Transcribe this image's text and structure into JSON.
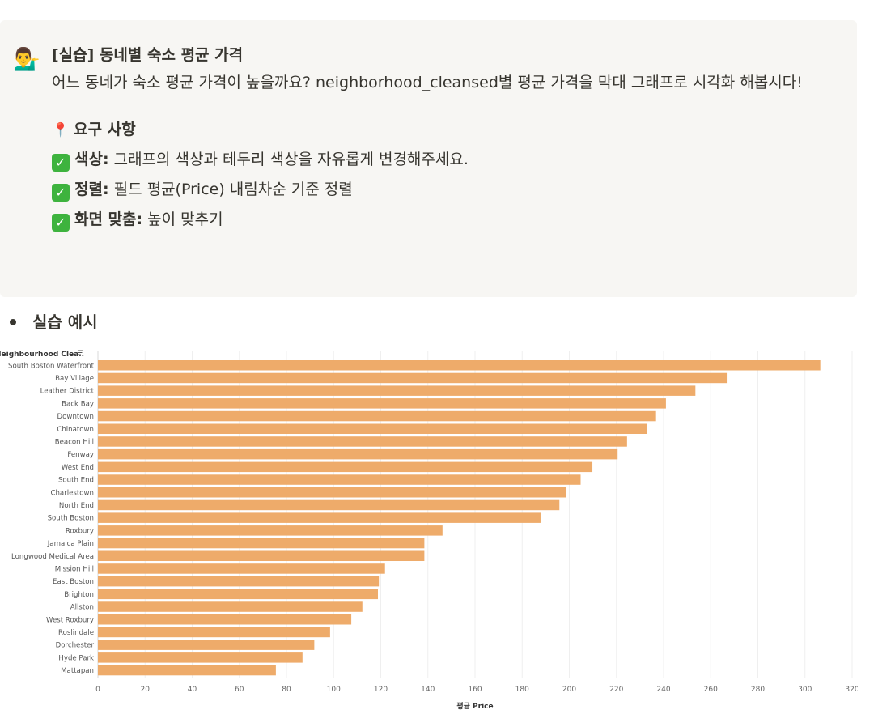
{
  "callout": {
    "icon": "person-with-laptop-emoji",
    "icon_glyph": "💁‍♂️",
    "title": "[실습] 동네별 숙소 평균 가격",
    "description": "어느 동네가 숙소 평균 가격이 높을까요? neighborhood_cleansed별 평균 가격을 막대 그래프로 시각화 해봅시다!",
    "requirements_title": "요구 사항",
    "requirements": [
      {
        "label": "색상:",
        "text": " 그래프의 색상과 테두리 색상을 자유롭게 변경해주세요."
      },
      {
        "label": "정렬:",
        "text": " 필드 평균(Price) 내림차순 기준 정렬"
      },
      {
        "label": "화면 맞춤:",
        "text": " 높이 맞추기"
      }
    ]
  },
  "example_heading": "실습 예시",
  "chart_data": {
    "type": "bar",
    "orientation": "horizontal",
    "row_header": "Neighbourhood Clea..",
    "xlabel": "평균 Price",
    "xlim": [
      0,
      320
    ],
    "xticks": [
      0,
      20,
      40,
      60,
      80,
      100,
      120,
      140,
      160,
      180,
      200,
      220,
      240,
      260,
      280,
      300,
      320
    ],
    "bar_color": "#eeab6a",
    "grid": true,
    "categories": [
      "South Boston Waterfront",
      "Bay Village",
      "Leather District",
      "Back Bay",
      "Downtown",
      "Chinatown",
      "Beacon Hill",
      "Fenway",
      "West End",
      "South End",
      "Charlestown",
      "North End",
      "South Boston",
      "Roxbury",
      "Jamaica Plain",
      "Longwood Medical Area",
      "Mission Hill",
      "East Boston",
      "Brighton",
      "Allston",
      "West Roxbury",
      "Roslindale",
      "Dorchester",
      "Hyde Park",
      "Mattapan"
    ],
    "values": [
      306.5,
      266.8,
      253.5,
      241.0,
      236.8,
      232.8,
      224.5,
      220.5,
      209.8,
      204.8,
      198.5,
      195.8,
      187.8,
      146.2,
      138.5,
      138.5,
      121.8,
      119.2,
      118.8,
      112.2,
      107.5,
      98.5,
      91.8,
      86.8,
      75.5
    ]
  }
}
